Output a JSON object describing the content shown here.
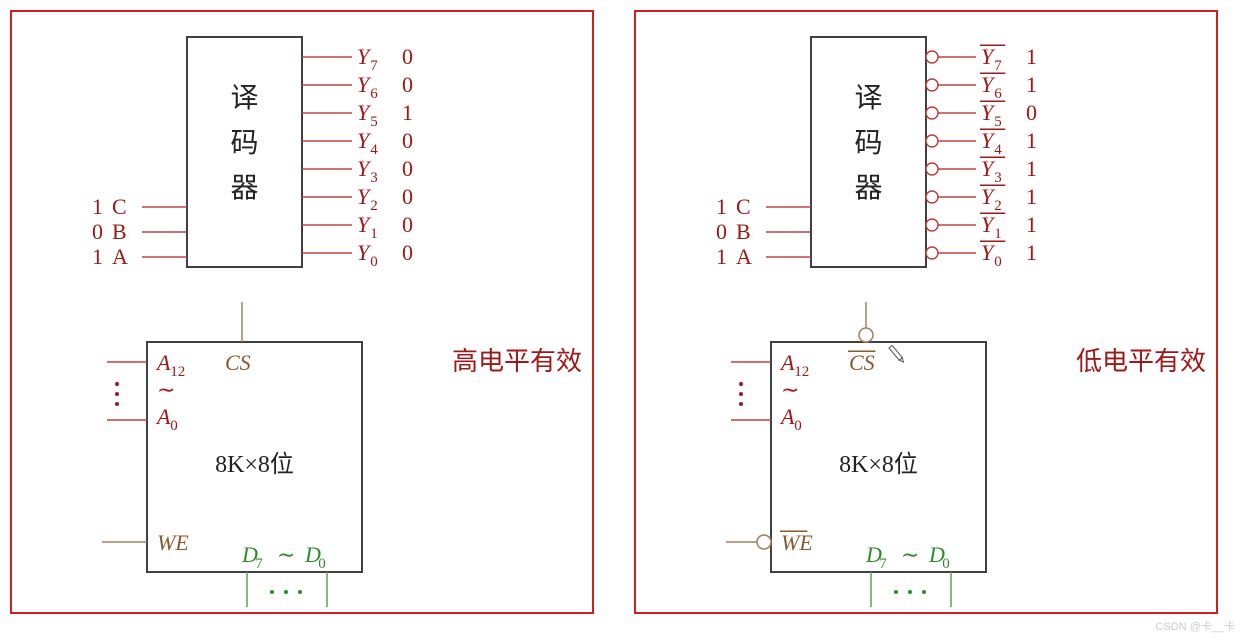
{
  "colors": {
    "panel_border": "#d02020",
    "box_border": "#404040",
    "text_dark_red": "#a01818",
    "text_brown": "#8b5a2b",
    "text_green": "#2e8b2e",
    "wire_red": "#c04040",
    "wire_brown": "#a08060",
    "wire_green": "#60a060",
    "background": "#ffffff"
  },
  "fonts": {
    "decoder_label_size": 28,
    "pin_label_size": 22,
    "subscript_size": 15,
    "caption_size": 26,
    "chip_size": 24
  },
  "left": {
    "caption": "高电平有效",
    "decoder_label_chars": [
      "译",
      "码",
      "器"
    ],
    "inputs": [
      {
        "val": "1",
        "name": "C"
      },
      {
        "val": "0",
        "name": "B"
      },
      {
        "val": "1",
        "name": "A"
      }
    ],
    "outputs": [
      {
        "label": "Y",
        "sub": "7",
        "val": "0",
        "overline": false
      },
      {
        "label": "Y",
        "sub": "6",
        "val": "0",
        "overline": false
      },
      {
        "label": "Y",
        "sub": "5",
        "val": "1",
        "overline": false
      },
      {
        "label": "Y",
        "sub": "4",
        "val": "0",
        "overline": false
      },
      {
        "label": "Y",
        "sub": "3",
        "val": "0",
        "overline": false
      },
      {
        "label": "Y",
        "sub": "2",
        "val": "0",
        "overline": false
      },
      {
        "label": "Y",
        "sub": "1",
        "val": "0",
        "overline": false
      },
      {
        "label": "Y",
        "sub": "0",
        "val": "0",
        "overline": false
      }
    ],
    "bubbles_on_outputs": false,
    "chip": {
      "cs_label": "CS",
      "cs_overline": false,
      "cs_bubble": false,
      "we_label": "WE",
      "we_overline": false,
      "we_bubble": false,
      "addr_hi": "A",
      "addr_hi_sub": "12",
      "addr_lo": "A",
      "addr_lo_sub": "0",
      "size": "8K×8位",
      "data_hi": "D",
      "data_hi_sub": "7",
      "data_lo": "D",
      "data_lo_sub": "0"
    }
  },
  "right": {
    "caption": "低电平有效",
    "decoder_label_chars": [
      "译",
      "码",
      "器"
    ],
    "inputs": [
      {
        "val": "1",
        "name": "C"
      },
      {
        "val": "0",
        "name": "B"
      },
      {
        "val": "1",
        "name": "A"
      }
    ],
    "outputs": [
      {
        "label": "Y",
        "sub": "7",
        "val": "1",
        "overline": true
      },
      {
        "label": "Y",
        "sub": "6",
        "val": "1",
        "overline": true
      },
      {
        "label": "Y",
        "sub": "5",
        "val": "0",
        "overline": true
      },
      {
        "label": "Y",
        "sub": "4",
        "val": "1",
        "overline": true
      },
      {
        "label": "Y",
        "sub": "3",
        "val": "1",
        "overline": true
      },
      {
        "label": "Y",
        "sub": "2",
        "val": "1",
        "overline": true
      },
      {
        "label": "Y",
        "sub": "1",
        "val": "1",
        "overline": true
      },
      {
        "label": "Y",
        "sub": "0",
        "val": "1",
        "overline": true
      }
    ],
    "bubbles_on_outputs": true,
    "chip": {
      "cs_label": "CS",
      "cs_overline": true,
      "cs_bubble": true,
      "we_label": "WE",
      "we_overline": true,
      "we_bubble": true,
      "addr_hi": "A",
      "addr_hi_sub": "12",
      "addr_lo": "A",
      "addr_lo_sub": "0",
      "size": "8K×8位",
      "data_hi": "D",
      "data_hi_sub": "7",
      "data_lo": "D",
      "data_lo_sub": "0"
    },
    "pencil_icon": true
  },
  "watermark": "CSDN @卡__卡"
}
